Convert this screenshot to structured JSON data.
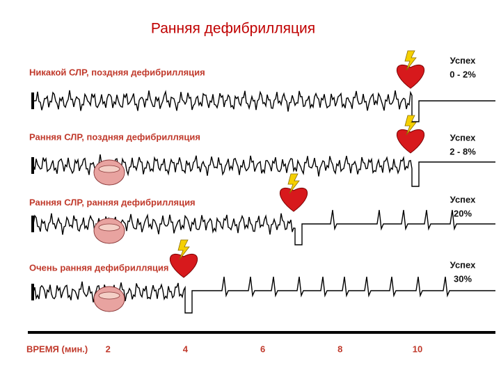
{
  "title": "Ранняя дефибрилляция",
  "scenarios": [
    {
      "label": "Никакой СЛР, поздняя дефибрилляция",
      "success_label": "Успех",
      "success_value": "0 - 2%"
    },
    {
      "label": "Ранняя СЛР, поздняя дефибрилляция",
      "success_label": "Успех",
      "success_value": "2 - 8%"
    },
    {
      "label": "Ранняя СЛР, ранняя дефибрилляция",
      "success_label": "Успех",
      "success_value": "20%"
    },
    {
      "label": "Очень ранняя дефибрилляция",
      "success_label": "Успех",
      "success_value": "30%"
    }
  ],
  "time_axis": {
    "label": "ВРЕМЯ (мин.)",
    "ticks": [
      2,
      4,
      6,
      8,
      10
    ]
  }
}
